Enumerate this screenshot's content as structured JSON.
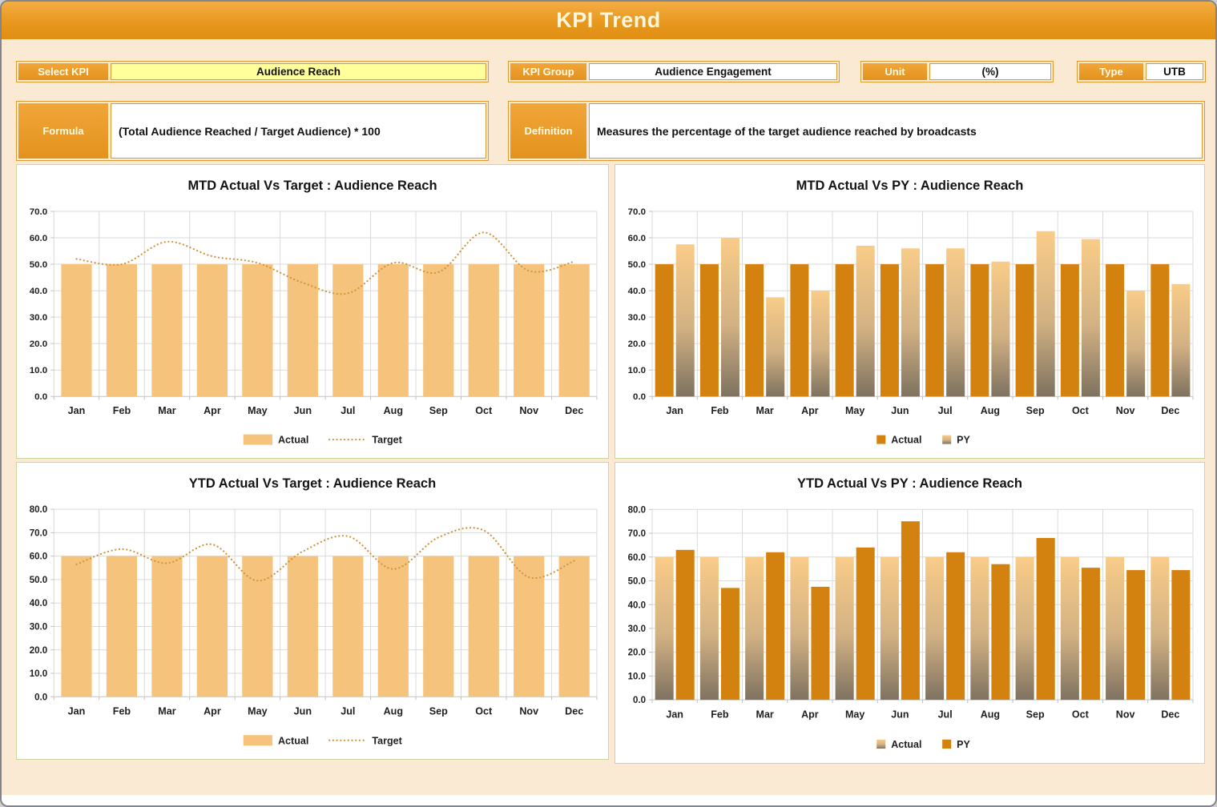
{
  "header": {
    "title": "KPI Trend"
  },
  "controls": {
    "select_kpi": {
      "label": "Select KPI",
      "value": "Audience Reach"
    },
    "kpi_group": {
      "label": "KPI Group",
      "value": "Audience Engagement"
    },
    "unit": {
      "label": "Unit",
      "value": "(%)"
    },
    "type": {
      "label": "Type",
      "value": "UTB"
    },
    "formula": {
      "label": "Formula",
      "value": "(Total Audience Reached / Target Audience) * 100"
    },
    "definition": {
      "label": "Definition",
      "value": "Measures the percentage of the target audience reached by broadcasts"
    }
  },
  "colors": {
    "header_orange": "#E8981F",
    "page_background": "#FAEAD3",
    "control_border": "#DD9A2E",
    "select_value_yellow": "#FFFF9C",
    "panel_border": "#CBD69E",
    "bar_light": "#F5C37C",
    "bar_dark": "#D4820F",
    "py_gradient_top": "#F9CC88",
    "py_gradient_mid": "#D2B183",
    "py_gradient_bottom": "#7E7260",
    "target_line": "#D1953B",
    "gridline": "#DADADA"
  },
  "chart_data": [
    {
      "type": "bar",
      "title": "MTD Actual Vs Target : Audience Reach",
      "categories": [
        "Jan",
        "Feb",
        "Mar",
        "Apr",
        "May",
        "Jun",
        "Jul",
        "Aug",
        "Sep",
        "Oct",
        "Nov",
        "Dec"
      ],
      "ylim": [
        0,
        70
      ],
      "ytick_step": 10,
      "grid": true,
      "legend_position": "bottom",
      "series": [
        {
          "name": "Actual",
          "style": "bar-light",
          "values": [
            50,
            50,
            50,
            50,
            50,
            50,
            50,
            50,
            50,
            50,
            50,
            50
          ]
        },
        {
          "name": "Target",
          "style": "dotted-line",
          "values": [
            52,
            50,
            58.5,
            53,
            50.5,
            43,
            39,
            50.5,
            47,
            62,
            47.5,
            51
          ]
        }
      ]
    },
    {
      "type": "bar",
      "title": "MTD Actual Vs PY : Audience Reach",
      "categories": [
        "Jan",
        "Feb",
        "Mar",
        "Apr",
        "May",
        "Jun",
        "Jul",
        "Aug",
        "Sep",
        "Oct",
        "Nov",
        "Dec"
      ],
      "ylim": [
        0,
        70
      ],
      "ytick_step": 10,
      "grid": true,
      "legend_position": "bottom",
      "series": [
        {
          "name": "Actual",
          "style": "bar-dark",
          "values": [
            50,
            50,
            50,
            50,
            50,
            50,
            50,
            50,
            50,
            50,
            50,
            50
          ]
        },
        {
          "name": "PY",
          "style": "bar-gradient",
          "values": [
            57.5,
            60,
            37.5,
            40,
            57,
            56,
            56,
            51,
            62.5,
            59.5,
            40,
            42.5
          ]
        }
      ]
    },
    {
      "type": "bar",
      "title": "YTD Actual Vs Target : Audience Reach",
      "categories": [
        "Jan",
        "Feb",
        "Mar",
        "Apr",
        "May",
        "Jun",
        "Jul",
        "Aug",
        "Sep",
        "Oct",
        "Nov",
        "Dec"
      ],
      "ylim": [
        0,
        80
      ],
      "ytick_step": 10,
      "grid": true,
      "legend_position": "bottom",
      "series": [
        {
          "name": "Actual",
          "style": "bar-light",
          "values": [
            60,
            60,
            60,
            60,
            60,
            60,
            60,
            60,
            60,
            60,
            60,
            60
          ]
        },
        {
          "name": "Target",
          "style": "dotted-line",
          "values": [
            56.5,
            63,
            57,
            65,
            49.5,
            62,
            68.5,
            54.5,
            68,
            71,
            51,
            58
          ]
        }
      ]
    },
    {
      "type": "bar",
      "title": "YTD Actual Vs PY : Audience Reach",
      "categories": [
        "Jan",
        "Feb",
        "Mar",
        "Apr",
        "May",
        "Jun",
        "Jul",
        "Aug",
        "Sep",
        "Oct",
        "Nov",
        "Dec"
      ],
      "ylim": [
        0,
        80
      ],
      "ytick_step": 10,
      "grid": true,
      "legend_position": "bottom",
      "series": [
        {
          "name": "Actual",
          "style": "bar-gradient",
          "values": [
            60,
            60,
            60,
            60,
            60,
            60,
            60,
            60,
            60,
            60,
            60,
            60
          ]
        },
        {
          "name": "PY",
          "style": "bar-dark",
          "values": [
            63,
            47,
            62,
            47.5,
            64,
            75,
            62,
            57,
            68,
            55.5,
            54.5,
            54.5
          ]
        }
      ]
    }
  ]
}
